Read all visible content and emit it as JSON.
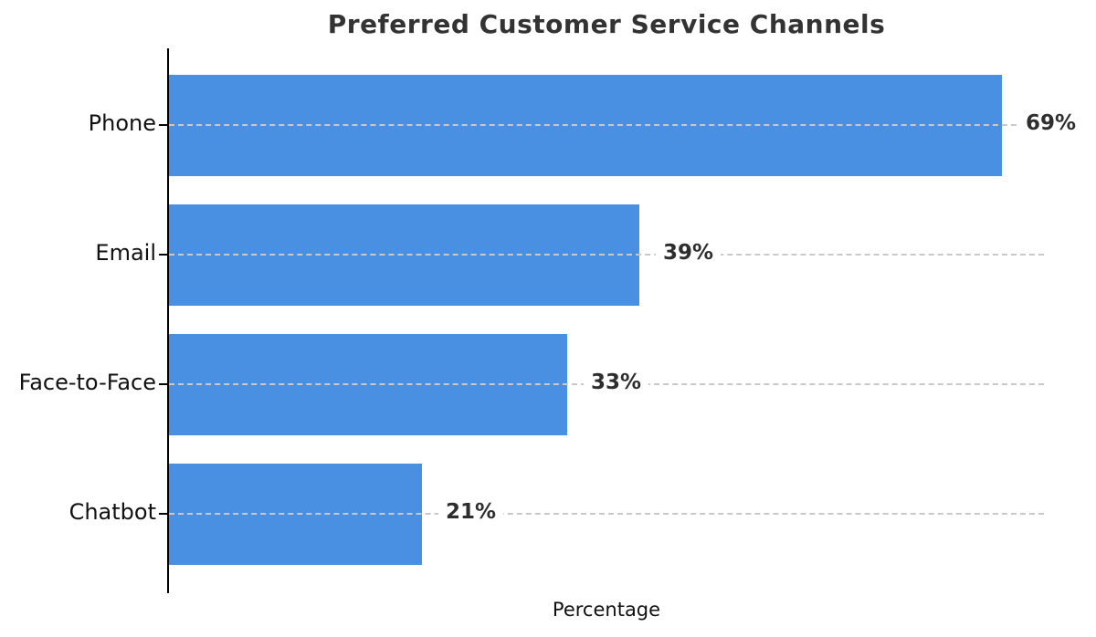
{
  "chart_data": {
    "type": "bar",
    "orientation": "horizontal",
    "title": "Preferred Customer Service Channels",
    "xlabel": "Percentage",
    "ylabel": "",
    "categories": [
      "Phone",
      "Email",
      "Face-to-Face",
      "Chatbot"
    ],
    "values": [
      69,
      39,
      33,
      21
    ],
    "value_labels": [
      "69%",
      "39%",
      "33%",
      "21%"
    ],
    "xlim": [
      0,
      72.5
    ],
    "grid": "dashed gridline at each category, drawn over bars",
    "legend": "none",
    "colors": {
      "bar": "#4a90e2",
      "title": "#333333",
      "text": "#111111",
      "value_label": "#2e2e2e",
      "gridline": "#c9c9c9",
      "axis_spine": "#000000"
    }
  }
}
